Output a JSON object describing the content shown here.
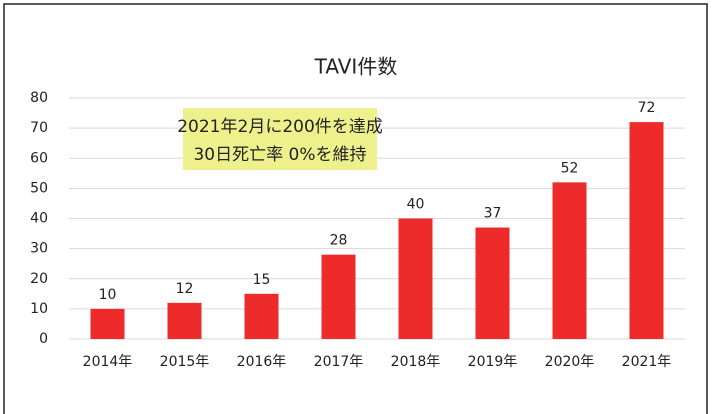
{
  "chart_data": {
    "type": "bar",
    "title": "TAVI件数",
    "annotations": [
      "2021年2月に200件を達成",
      "30日死亡率 0%を維持"
    ],
    "categories": [
      "2014年",
      "2015年",
      "2016年",
      "2017年",
      "2018年",
      "2019年",
      "2020年",
      "2021年"
    ],
    "values": [
      10,
      12,
      15,
      28,
      40,
      37,
      52,
      72
    ],
    "color": "#ee2b2b",
    "ylim": [
      0,
      80
    ],
    "yticks": [
      0,
      10,
      20,
      30,
      40,
      50,
      60,
      70,
      80
    ],
    "grid": true
  }
}
